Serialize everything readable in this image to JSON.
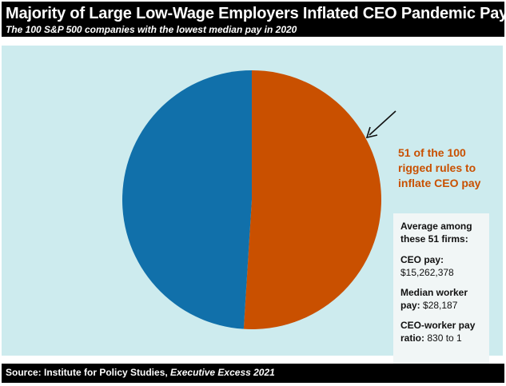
{
  "title": "Majority of Large Low-Wage Employers Inflated CEO Pandemic Pay",
  "subtitle": "The 100 S&P 500 companies with the lowest median pay in 2020",
  "colors": {
    "background": "#cdebee",
    "rigged": "#c95000",
    "other": "#1170aa",
    "header": "#000000",
    "stats_box": "#f1f6f6"
  },
  "chart_data": {
    "type": "pie",
    "title": "",
    "slices": [
      {
        "label": "51 of the 100 rigged rules to inflate CEO pay",
        "value": 51,
        "color": "#c95000"
      },
      {
        "label": "",
        "value": 49,
        "color": "#1170aa"
      }
    ],
    "start_angle_deg": 0,
    "direction": "clockwise"
  },
  "annotation": {
    "lines": [
      "51 of the 100",
      "rigged rules to",
      "inflate CEO pay"
    ]
  },
  "stats": {
    "heading": "Average among these 51 firms:",
    "ceo_pay_label": "CEO pay:",
    "ceo_pay_value": "$15,262,378",
    "median_pay_label": "Median worker pay:",
    "median_pay_value": "$28,187",
    "ratio_label": "CEO-worker pay ratio:",
    "ratio_value": "830 to 1"
  },
  "source": {
    "prefix": "Source: Institute for Policy Studies, ",
    "publication": "Executive Excess 2021"
  }
}
